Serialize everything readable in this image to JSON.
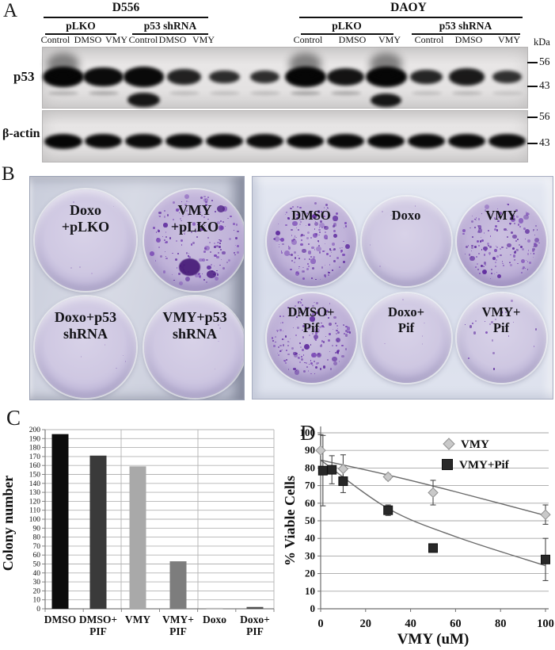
{
  "panelA": {
    "label": "A",
    "kda_unit": "kDa",
    "cell_lines": [
      {
        "name": "D556",
        "groups": [
          {
            "name": "pLKO",
            "lanes": [
              "Control",
              "DMSO",
              "VMY"
            ]
          },
          {
            "name": "p53 shRNA",
            "lanes": [
              "Control",
              "DMSO",
              "VMY"
            ]
          }
        ]
      },
      {
        "name": "DAOY",
        "groups": [
          {
            "name": "pLKO",
            "lanes": [
              "Control",
              "DMSO",
              "VMY"
            ]
          },
          {
            "name": "p53 shRNA",
            "lanes": [
              "Control",
              "DMSO",
              "VMY"
            ]
          }
        ]
      }
    ],
    "blots": [
      {
        "label": "p53",
        "markers": [
          "56",
          "43"
        ],
        "band_intensity": [
          1,
          0.92,
          0.95,
          0.55,
          0.38,
          0.36,
          1,
          0.78,
          1,
          0.5,
          0.68,
          0.32
        ],
        "lower_band_intensity": [
          0.22,
          0.3,
          0.95,
          0.12,
          0.1,
          0.12,
          0.35,
          0.3,
          0.8,
          0.1,
          0.15,
          0.05
        ]
      },
      {
        "label": "β-actin",
        "markers": [
          "56",
          "43"
        ],
        "band_intensity": [
          1,
          0.9,
          0.85,
          0.9,
          0.9,
          0.85,
          0.95,
          0.9,
          0.95,
          0.9,
          0.9,
          0.85
        ]
      }
    ]
  },
  "panelB": {
    "label": "B",
    "colony_color": "#5e2a9d",
    "colony_color_light": "#7a48b5",
    "plates": [
      {
        "name": "four-well-plate",
        "cols": 2,
        "wells": [
          {
            "label": [
              "Doxo",
              "+pLKO"
            ],
            "colonies": "none"
          },
          {
            "label": [
              "VMY",
              "+pLKO"
            ],
            "colonies": "dense",
            "blob": true
          },
          {
            "label": [
              "Doxo+p53",
              "shRNA"
            ],
            "colonies": "none"
          },
          {
            "label": [
              "VMY+p53",
              "shRNA"
            ],
            "colonies": "none"
          }
        ]
      },
      {
        "name": "six-well-plate",
        "cols": 3,
        "wells": [
          {
            "label": [
              "DMSO"
            ],
            "colonies": "dense"
          },
          {
            "label": [
              "Doxo"
            ],
            "colonies": "none"
          },
          {
            "label": [
              "VMY"
            ],
            "colonies": "dense"
          },
          {
            "label": [
              "DMSO+",
              "Pif"
            ],
            "colonies": "dense"
          },
          {
            "label": [
              "Doxo+",
              "Pif"
            ],
            "colonies": "none"
          },
          {
            "label": [
              "VMY+",
              "Pif"
            ],
            "colonies": "sparse"
          }
        ]
      }
    ]
  },
  "panelC_label": "C",
  "panelD_label": "D",
  "chart_data": [
    {
      "panel": "C",
      "type": "bar",
      "categories": [
        [
          "DMSO"
        ],
        [
          "DMSO+",
          "PIF"
        ],
        [
          "VMY"
        ],
        [
          "VMY+",
          "PIF"
        ],
        [
          "Doxo"
        ],
        [
          "Doxo+",
          "PIF"
        ]
      ],
      "values": [
        195,
        171,
        159,
        53,
        1,
        2
      ],
      "bar_colors": [
        "#0c0c0c",
        "#3a3a3a",
        "#a9a9a9",
        "#7d7d7d",
        "#b5b5b5",
        "#4e4e4e"
      ],
      "title": "",
      "xlabel": "",
      "ylabel": "Colony number",
      "ylim": [
        0,
        200
      ],
      "ytick_step": 10,
      "grid": true
    },
    {
      "panel": "D",
      "type": "scatter",
      "xlabel": "VMY (uM)",
      "ylabel": "% Viable Cells",
      "xlim": [
        0,
        100
      ],
      "xtick_step": 20,
      "ylim": [
        0,
        100
      ],
      "ytick_step": 10,
      "grid": "horizontal",
      "legend_position": "top-right",
      "series": [
        {
          "name": "VMY",
          "marker": "diamond",
          "color": "#c9c9c9",
          "edge_color": "#8f8f8f",
          "points": [
            {
              "x": 0,
              "y": 90,
              "err": 9
            },
            {
              "x": 10,
              "y": 79.5,
              "err": 8
            },
            {
              "x": 30,
              "y": 75,
              "err": 1.5
            },
            {
              "x": 50,
              "y": 66,
              "err": 7
            },
            {
              "x": 100,
              "y": 53.5,
              "err": 5.5
            }
          ],
          "trend": [
            [
              0,
              84.5
            ],
            [
              30,
              76
            ],
            [
              60,
              66.5
            ],
            [
              100,
              53
            ]
          ]
        },
        {
          "name": "VMY+Pif",
          "marker": "square",
          "color": "#282828",
          "edge_color": "#111111",
          "points": [
            {
              "x": 1,
              "y": 78.5,
              "err": 20
            },
            {
              "x": 5,
              "y": 79,
              "err": 8
            },
            {
              "x": 10,
              "y": 72.5,
              "err": 6.5
            },
            {
              "x": 30,
              "y": 56,
              "err": 3
            },
            {
              "x": 50,
              "y": 34.5,
              "err": 0
            },
            {
              "x": 100,
              "y": 28,
              "err": 12
            }
          ],
          "trend": [
            [
              0,
              84.5
            ],
            [
              30,
              57
            ],
            [
              60,
              41
            ],
            [
              100,
              24.5
            ]
          ]
        }
      ]
    }
  ]
}
